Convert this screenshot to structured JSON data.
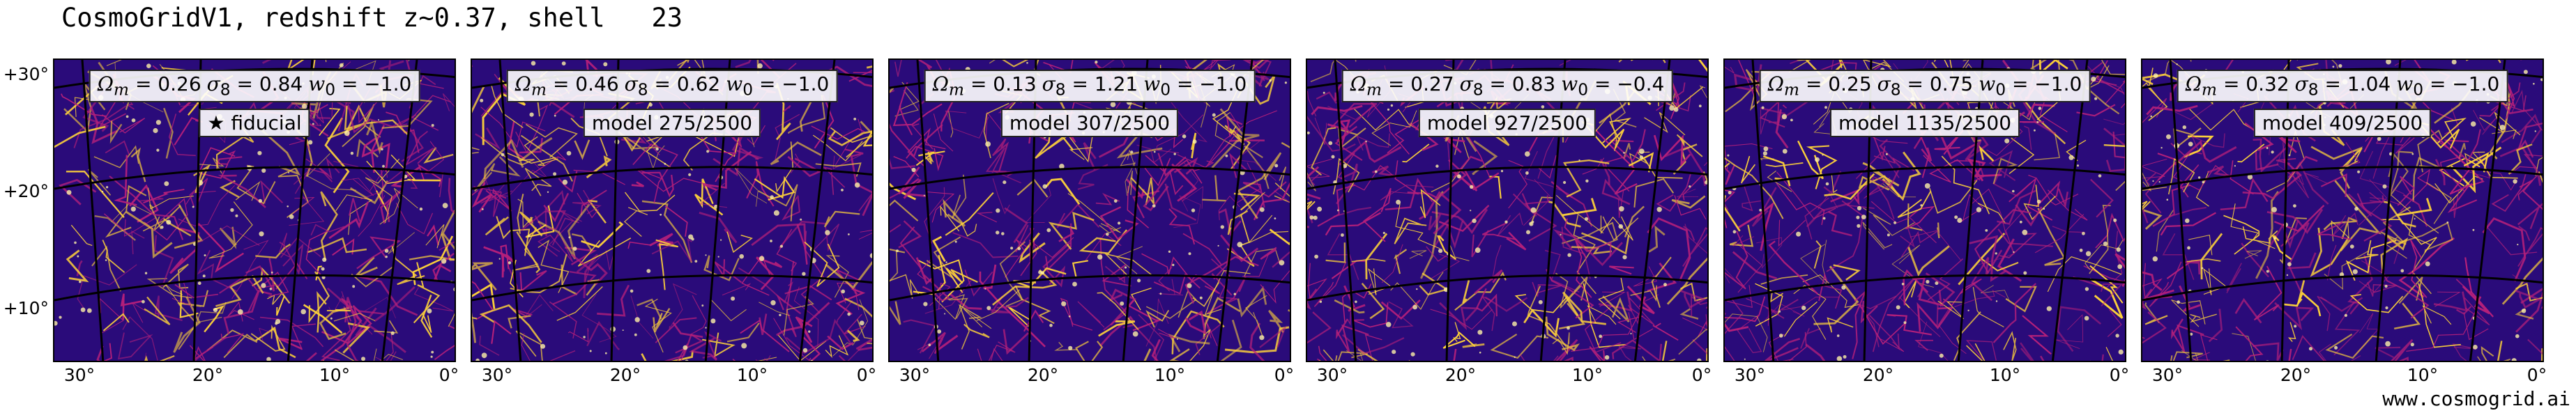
{
  "title": "CosmoGridV1, redshift z∼0.37, shell   23",
  "credit": "www.cosmogrid.ai",
  "yticks": [
    "+30°",
    "+20°",
    "+10°"
  ],
  "xticks": [
    "30°",
    "20°",
    "10°",
    "0°"
  ],
  "panels": [
    {
      "omega_m": "0.26",
      "sigma_8": "0.84",
      "w0": "−1.0",
      "label": "★ fiducial"
    },
    {
      "omega_m": "0.46",
      "sigma_8": "0.62",
      "w0": "−1.0",
      "label": "model 275/2500"
    },
    {
      "omega_m": "0.13",
      "sigma_8": "1.21",
      "w0": "−1.0",
      "label": "model 307/2500"
    },
    {
      "omega_m": "0.27",
      "sigma_8": "0.83",
      "w0": "−0.4",
      "label": "model 927/2500"
    },
    {
      "omega_m": "0.25",
      "sigma_8": "0.75",
      "w0": "−1.0",
      "label": "model 1135/2500"
    },
    {
      "omega_m": "0.32",
      "sigma_8": "1.04",
      "w0": "−1.0",
      "label": "model 409/2500"
    }
  ],
  "colors": {
    "void": "#2a0b7a",
    "mid": "#b5207a",
    "filament": "#fdd13a",
    "grid": "#000000"
  }
}
